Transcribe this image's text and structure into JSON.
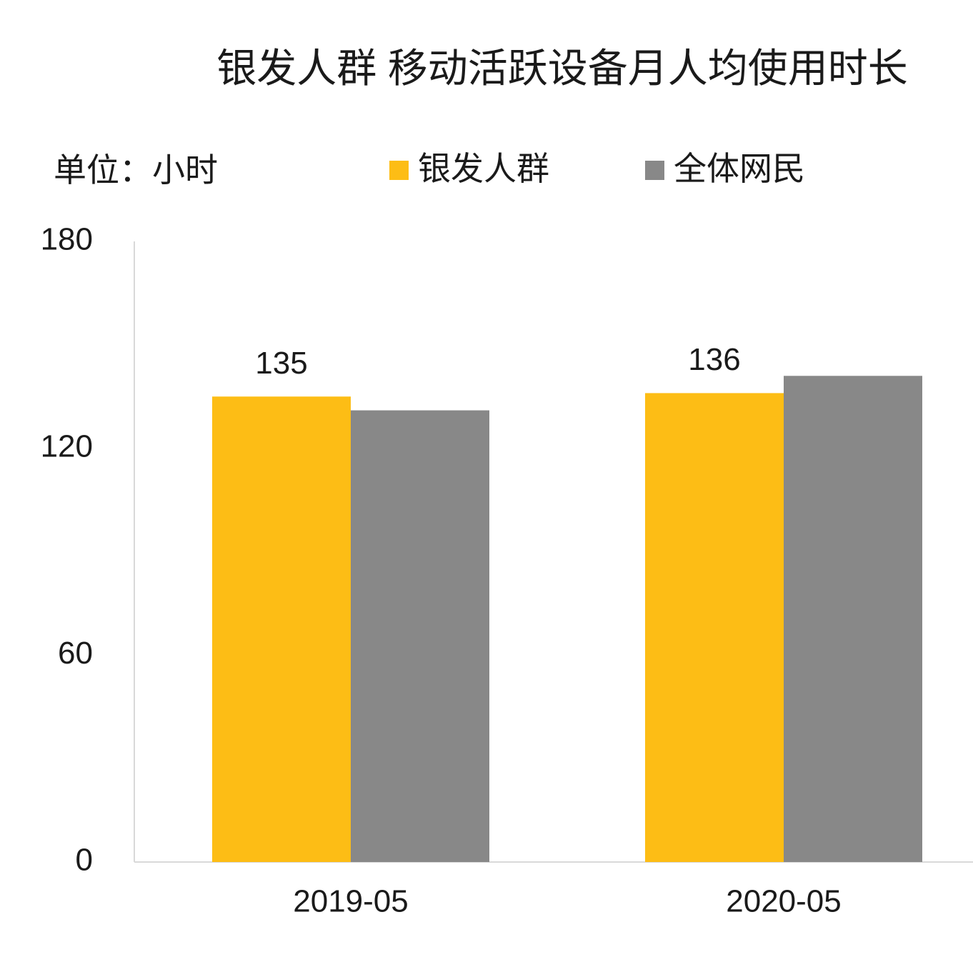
{
  "chart_data": {
    "type": "bar",
    "title": "银发人群 移动活跃设备月人均使用时长",
    "unit": "单位：小时",
    "categories": [
      "2019-05",
      "2020-05"
    ],
    "series": [
      {
        "name": "银发人群",
        "color": "#FDBD15",
        "values": [
          135,
          136
        ],
        "value_labels": [
          "135",
          "136"
        ]
      },
      {
        "name": "全体网民",
        "color": "#888888",
        "values": [
          131,
          141
        ]
      }
    ],
    "ylim": [
      0,
      180
    ],
    "yticks": [
      0,
      60,
      120,
      180
    ],
    "grid": false,
    "legend": "top"
  }
}
